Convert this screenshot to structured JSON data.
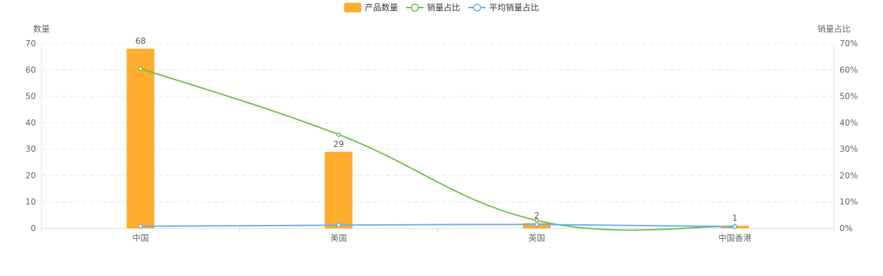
{
  "chart_data": {
    "type": "bar",
    "categories": [
      "中国",
      "美国",
      "英国",
      "中国香港"
    ],
    "series": [
      {
        "name": "产品数量",
        "type": "bar",
        "axis": "left",
        "color": "#FFAC2F",
        "values": [
          68,
          29,
          2,
          1
        ]
      },
      {
        "name": "销量占比",
        "type": "line",
        "axis": "right",
        "color": "#6DC24B",
        "values": [
          60.5,
          35.5,
          3.0,
          0.8
        ]
      },
      {
        "name": "平均销量占比",
        "type": "line",
        "axis": "right",
        "color": "#6AAEE8",
        "values": [
          0.8,
          1.2,
          1.5,
          0.7
        ]
      }
    ],
    "ylabel": "数量",
    "y2label": "销量占比",
    "ylim": [
      0,
      70
    ],
    "y2lim": [
      0,
      70
    ],
    "yticks": [
      "0",
      "10",
      "20",
      "30",
      "40",
      "50",
      "60",
      "70"
    ],
    "y2ticks": [
      "0%",
      "10%",
      "20%",
      "30%",
      "40%",
      "50%",
      "60%",
      "70%"
    ],
    "grid": true,
    "legend": "top-center"
  }
}
